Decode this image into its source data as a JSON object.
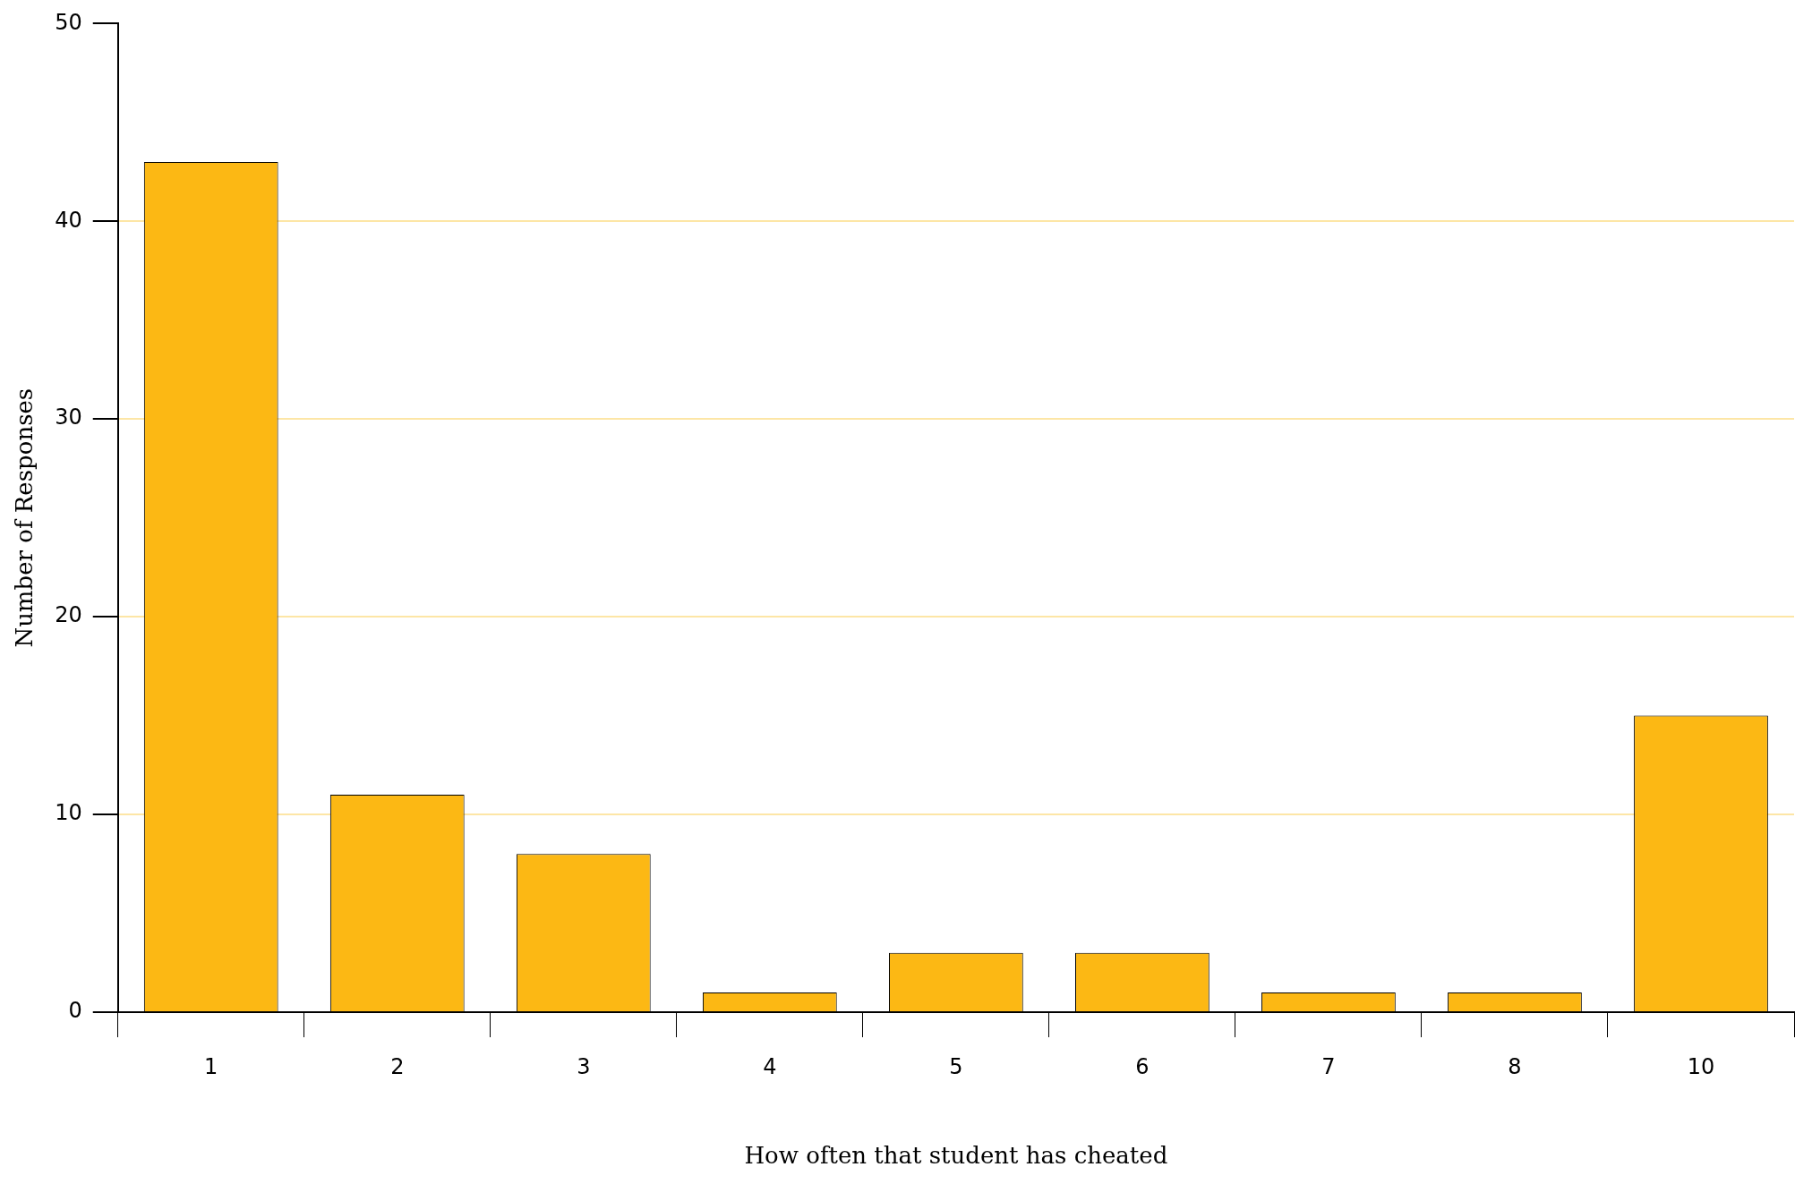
{
  "chart_data": {
    "type": "bar",
    "xlabel": "How often that student has cheated",
    "ylabel": "Number of Responses",
    "categories": [
      "1",
      "2",
      "3",
      "4",
      "5",
      "6",
      "7",
      "8",
      "10"
    ],
    "values": [
      43,
      11,
      8,
      1,
      3,
      3,
      1,
      1,
      15
    ],
    "color": "#fcb814",
    "ylim": [
      0,
      50
    ],
    "yticks": [
      0,
      10,
      20,
      30,
      40,
      50
    ],
    "grid": "y"
  }
}
